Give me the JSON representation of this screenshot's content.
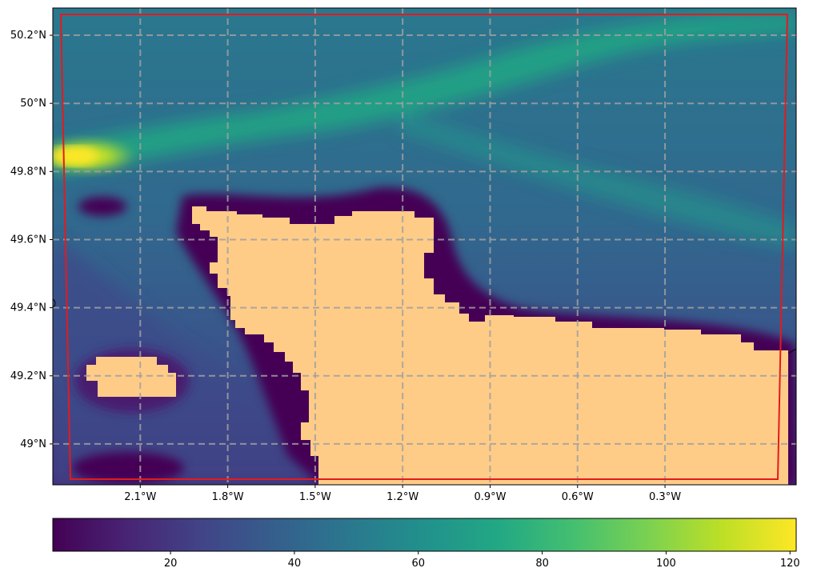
{
  "chart_data": {
    "type": "heatmap",
    "title": "",
    "xlabel": "",
    "ylabel": "",
    "xlim": [
      -2.4,
      0.15
    ],
    "ylim": [
      48.88,
      50.28
    ],
    "x_ticks": [
      {
        "value": -2.1,
        "label": "2.1°W"
      },
      {
        "value": -1.8,
        "label": "1.8°W"
      },
      {
        "value": -1.5,
        "label": "1.5°W"
      },
      {
        "value": -1.2,
        "label": "1.2°W"
      },
      {
        "value": -0.9,
        "label": "0.9°W"
      },
      {
        "value": -0.6,
        "label": "0.6°W"
      },
      {
        "value": -0.3,
        "label": "0.3°W"
      }
    ],
    "y_ticks": [
      {
        "value": 49.0,
        "label": "49°N"
      },
      {
        "value": 49.2,
        "label": "49.2°N"
      },
      {
        "value": 49.4,
        "label": "49.4°N"
      },
      {
        "value": 49.6,
        "label": "49.6°N"
      },
      {
        "value": 49.8,
        "label": "49.8°N"
      },
      {
        "value": 50.0,
        "label": "50°N"
      },
      {
        "value": 50.2,
        "label": "50.2°N"
      }
    ],
    "gridlines": true,
    "land_color": "#ffcc88",
    "boundary_color": "#e41a1c",
    "colormap": "viridis",
    "colorbar": {
      "orientation": "horizontal",
      "location": "bottom",
      "range": [
        1,
        121
      ],
      "ticks": [
        {
          "value": 20,
          "label": "20"
        },
        {
          "value": 40,
          "label": "40"
        },
        {
          "value": 60,
          "label": "60"
        },
        {
          "value": 80,
          "label": "80"
        },
        {
          "value": 100,
          "label": "100"
        },
        {
          "value": 120,
          "label": "120"
        }
      ]
    }
  }
}
